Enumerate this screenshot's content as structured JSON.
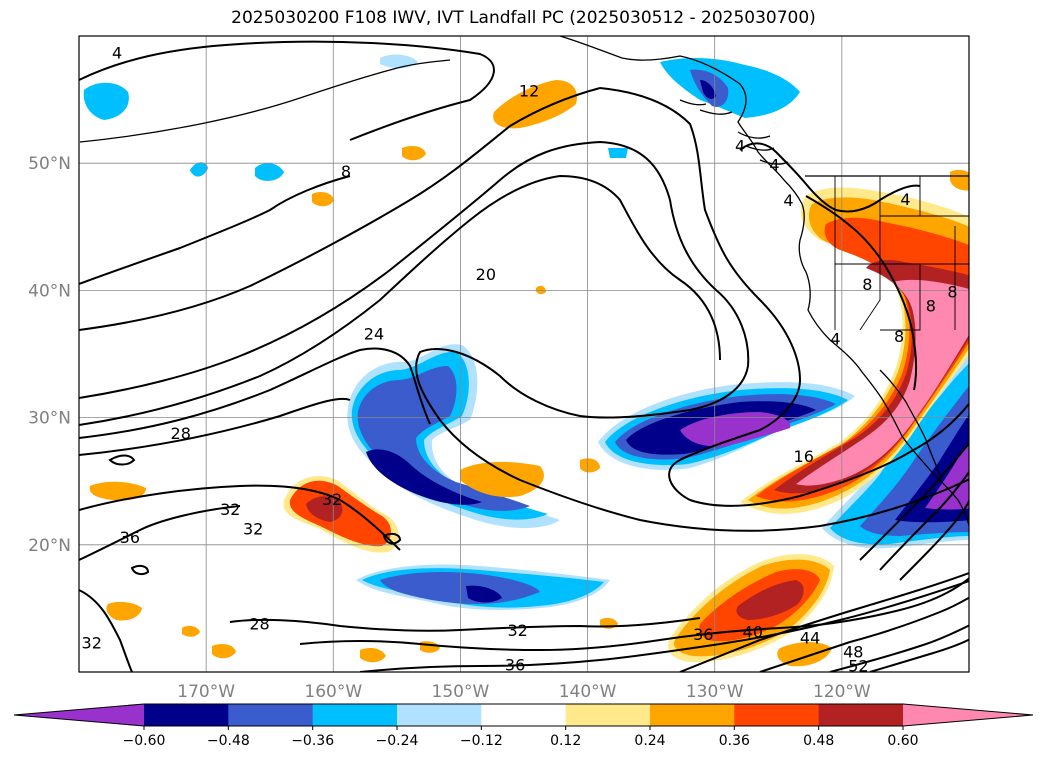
{
  "title": "2025030200 F108 IWV, IVT Landfall PC (2025030512 - 2025030700)",
  "map": {
    "lon_range": [
      -180,
      -110
    ],
    "lat_range": [
      10,
      60
    ],
    "lat_ticks": [
      {
        "value": 20,
        "label": "20°N"
      },
      {
        "value": 30,
        "label": "30°N"
      },
      {
        "value": 40,
        "label": "40°N"
      },
      {
        "value": 50,
        "label": "50°N"
      }
    ],
    "lon_ticks": [
      {
        "value": -170,
        "label": "170°W"
      },
      {
        "value": -160,
        "label": "160°W"
      },
      {
        "value": -150,
        "label": "150°W"
      },
      {
        "value": -140,
        "label": "140°W"
      },
      {
        "value": -130,
        "label": "130°W"
      },
      {
        "value": -120,
        "label": "120°W"
      }
    ],
    "gridlines": true
  },
  "colorbar": {
    "colors": [
      "#9932cc",
      "#00008b",
      "#3a5ccc",
      "#00bfff",
      "#b0e2ff",
      "#ffffff",
      "#ffe98a",
      "#ffa500",
      "#ff4500",
      "#b22222",
      "#ff88b0"
    ],
    "labels": [
      "−0.60",
      "−0.48",
      "−0.36",
      "−0.24",
      "−0.12",
      "0.12",
      "0.24",
      "0.36",
      "0.48",
      "0.60"
    ],
    "extend": "both"
  },
  "contour_labels": [
    {
      "text": "4",
      "lon": -177,
      "lat": 58.7
    },
    {
      "text": "12",
      "lon": -144.6,
      "lat": 55.7
    },
    {
      "text": "8",
      "lon": -159,
      "lat": 49.4
    },
    {
      "text": "20",
      "lon": -148,
      "lat": 41.3
    },
    {
      "text": "24",
      "lon": -156.8,
      "lat": 36.6
    },
    {
      "text": "28",
      "lon": -172,
      "lat": 28.8
    },
    {
      "text": "32",
      "lon": -168.1,
      "lat": 22.8
    },
    {
      "text": "32",
      "lon": -166.3,
      "lat": 21.3
    },
    {
      "text": "36",
      "lon": -176,
      "lat": 20.6
    },
    {
      "text": "32",
      "lon": -179,
      "lat": 12.3
    },
    {
      "text": "28",
      "lon": -165.8,
      "lat": 13.8
    },
    {
      "text": "32",
      "lon": -160.1,
      "lat": 23.6
    },
    {
      "text": "32",
      "lon": -145.5,
      "lat": 13.3
    },
    {
      "text": "36",
      "lon": -145.7,
      "lat": 10.6
    },
    {
      "text": "36",
      "lon": -130.9,
      "lat": 13.0
    },
    {
      "text": "40",
      "lon": -127.0,
      "lat": 13.2
    },
    {
      "text": "44",
      "lon": -122.5,
      "lat": 12.7
    },
    {
      "text": "48",
      "lon": -119.1,
      "lat": 11.6
    },
    {
      "text": "52",
      "lon": -118.7,
      "lat": 10.5
    },
    {
      "text": "16",
      "lon": -123.0,
      "lat": 27.0
    },
    {
      "text": "4",
      "lon": -128.0,
      "lat": 51.4
    },
    {
      "text": "4",
      "lon": -125.3,
      "lat": 49.9
    },
    {
      "text": "4",
      "lon": -124.2,
      "lat": 47.1
    },
    {
      "text": "4",
      "lon": -115.0,
      "lat": 47.2
    },
    {
      "text": "8",
      "lon": -118.0,
      "lat": 40.5
    },
    {
      "text": "8",
      "lon": -113.0,
      "lat": 38.8
    },
    {
      "text": "8",
      "lon": -111.3,
      "lat": 39.9
    },
    {
      "text": "8",
      "lon": -115.5,
      "lat": 36.4
    },
    {
      "text": "4",
      "lon": -120.5,
      "lat": 36.2
    }
  ]
}
